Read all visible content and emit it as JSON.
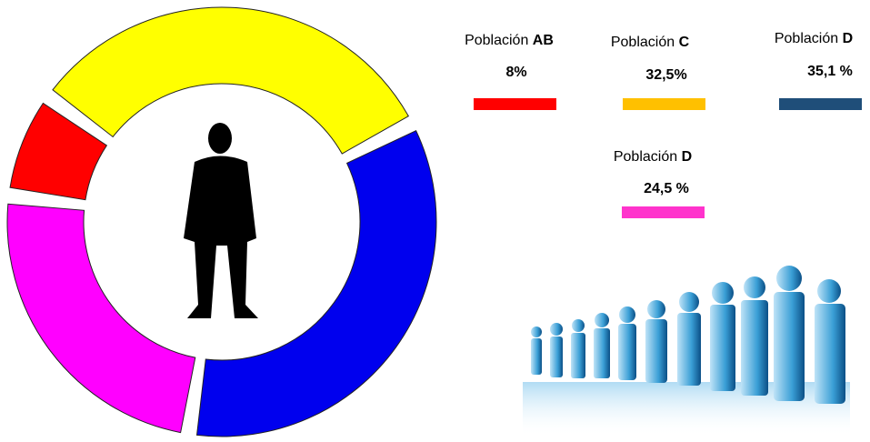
{
  "chart_data": {
    "type": "donut",
    "categories": [
      "Población AB",
      "Población C",
      "Población D",
      "Población D"
    ],
    "values": [
      8,
      32.5,
      35.1,
      24.5
    ],
    "value_labels": [
      "8%",
      "32,5%",
      "35,1 %",
      "24,5 %"
    ],
    "colors": [
      "#ff0000",
      "#ffff00",
      "#0000ee",
      "#ff00ff"
    ],
    "legend_colors": [
      "#ff0000",
      "#ffc000",
      "#1f4e79",
      "#ff33cc"
    ]
  }
}
